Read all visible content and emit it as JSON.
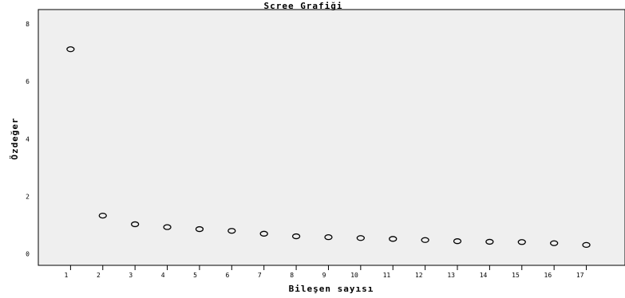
{
  "chart_data": {
    "type": "scatter",
    "title": "Scree Grafiği",
    "xlabel": "Bileşen sayısı",
    "ylabel": "Özdeğer",
    "xlim": [
      0,
      18.2
    ],
    "ylim": [
      -0.4,
      8.5
    ],
    "x_ticks": [
      1,
      2,
      3,
      4,
      5,
      6,
      7,
      8,
      9,
      10,
      11,
      12,
      13,
      14,
      15,
      16,
      17
    ],
    "y_ticks": [
      0,
      2,
      4,
      6,
      8
    ],
    "grid": false,
    "x": [
      1,
      2,
      3,
      4,
      5,
      6,
      7,
      8,
      9,
      10,
      11,
      12,
      13,
      14,
      15,
      16,
      17
    ],
    "y": [
      7.12,
      1.33,
      1.03,
      0.93,
      0.86,
      0.8,
      0.7,
      0.61,
      0.58,
      0.55,
      0.52,
      0.48,
      0.44,
      0.42,
      0.41,
      0.37,
      0.31
    ]
  },
  "colors": {
    "plot_background": "#efefef",
    "marker_stroke": "#000000"
  }
}
